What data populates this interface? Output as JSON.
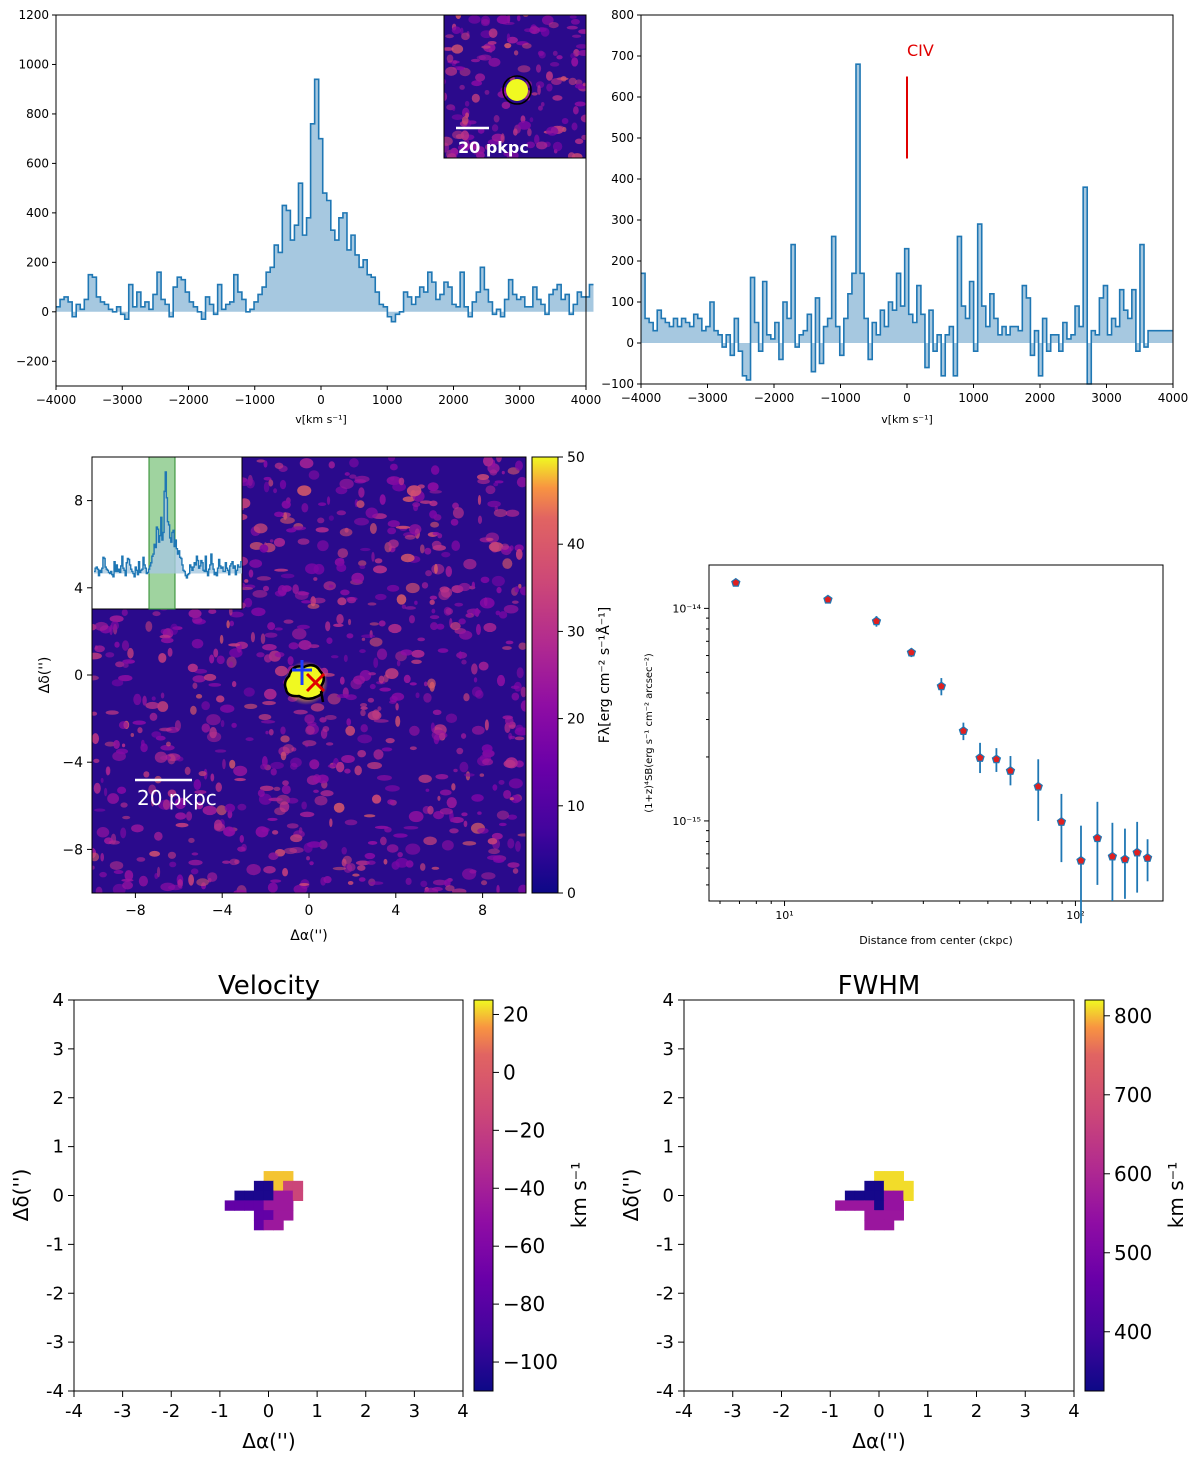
{
  "chart_data": [
    {
      "id": "spec_lya",
      "type": "line",
      "xlabel": "v[km s⁻¹]",
      "ylabel": "",
      "xlim": [
        -4000,
        4000
      ],
      "ylim": [
        -300,
        1200
      ],
      "xticks": [
        -4000,
        -3000,
        -2000,
        -1000,
        0,
        1000,
        2000,
        3000,
        4000
      ],
      "yticks": [
        -200,
        0,
        200,
        400,
        600,
        800,
        1000,
        1200
      ],
      "xticklabels": [
        "−4000",
        "−3000",
        "−2000",
        "−1000",
        "0",
        "1000",
        "2000",
        "3000",
        "4000"
      ],
      "yticklabels": [
        "−200",
        "0",
        "200",
        "400",
        "600",
        "800",
        "1000",
        "1200"
      ],
      "x_start": -4000,
      "step": 61,
      "values": [
        20,
        50,
        60,
        40,
        -20,
        30,
        10,
        50,
        150,
        140,
        60,
        40,
        30,
        10,
        0,
        20,
        -10,
        -30,
        110,
        20,
        80,
        20,
        40,
        10,
        70,
        160,
        50,
        30,
        -20,
        100,
        140,
        130,
        80,
        40,
        20,
        0,
        -30,
        60,
        30,
        -10,
        110,
        10,
        30,
        40,
        150,
        80,
        50,
        0,
        10,
        40,
        70,
        100,
        160,
        180,
        270,
        240,
        430,
        410,
        290,
        350,
        520,
        310,
        380,
        760,
        940,
        700,
        480,
        450,
        330,
        290,
        380,
        400,
        250,
        310,
        230,
        180,
        210,
        150,
        140,
        80,
        30,
        20,
        -20,
        -40,
        -10,
        0,
        80,
        60,
        30,
        60,
        100,
        80,
        160,
        120,
        50,
        70,
        120,
        100,
        30,
        20,
        160,
        20,
        -20,
        40,
        80,
        180,
        90,
        40,
        -10,
        10,
        -20,
        50,
        130,
        70,
        50,
        60,
        20,
        20,
        100,
        50,
        30,
        -10,
        70,
        90,
        110,
        50,
        70,
        -10,
        30,
        80,
        60,
        60,
        110
      ]
    },
    {
      "id": "spec_civ",
      "type": "line",
      "xlabel": "v[km s⁻¹]",
      "ylabel": "",
      "xlim": [
        -4000,
        4000
      ],
      "ylim": [
        -100,
        800
      ],
      "xticks": [
        -4000,
        -3000,
        -2000,
        -1000,
        0,
        1000,
        2000,
        3000,
        4000
      ],
      "yticks": [
        -100,
        0,
        100,
        200,
        300,
        400,
        500,
        600,
        700,
        800
      ],
      "xticklabels": [
        "−4000",
        "−3000",
        "−2000",
        "−1000",
        "0",
        "1000",
        "2000",
        "3000",
        "4000"
      ],
      "yticklabels": [
        "−100",
        "0",
        "100",
        "200",
        "300",
        "400",
        "500",
        "600",
        "700",
        "800"
      ],
      "x_start": -4000,
      "step": 61,
      "values": [
        170,
        60,
        50,
        30,
        80,
        60,
        50,
        40,
        60,
        40,
        60,
        50,
        40,
        70,
        60,
        30,
        40,
        100,
        30,
        20,
        -10,
        20,
        -30,
        60,
        -20,
        -80,
        -90,
        160,
        50,
        -20,
        150,
        20,
        10,
        50,
        -40,
        100,
        60,
        240,
        -10,
        20,
        30,
        70,
        -70,
        110,
        -50,
        40,
        60,
        260,
        40,
        -30,
        60,
        120,
        170,
        680,
        170,
        60,
        -40,
        50,
        20,
        80,
        40,
        100,
        80,
        170,
        90,
        230,
        70,
        50,
        140,
        70,
        -60,
        80,
        -20,
        20,
        -80,
        20,
        40,
        -80,
        260,
        90,
        60,
        150,
        -20,
        290,
        90,
        40,
        120,
        60,
        20,
        40,
        20,
        40,
        40,
        30,
        140,
        110,
        -30,
        30,
        -80,
        60,
        -20,
        20,
        20,
        -20,
        50,
        10,
        20,
        90,
        40,
        380,
        -100,
        30,
        20,
        110,
        140,
        20,
        60,
        40,
        130,
        80,
        60,
        130,
        -20,
        240,
        -10,
        30,
        30,
        30,
        30,
        30,
        30
      ],
      "annotation": "CIV",
      "annotation_line": {
        "x": 0,
        "y0": 450,
        "y1": 650
      }
    },
    {
      "id": "profile",
      "type": "scatter",
      "xscale": "log",
      "yscale": "log",
      "xlabel": "Distance from center (ckpc)",
      "ylabel": "(1+z)⁴SB(erg s⁻¹ cm⁻² arcsec⁻²)",
      "xlim": [
        5.5,
        200
      ],
      "ylim": [
        4.2e-16,
        1.6e-14
      ],
      "xtick_labels": [
        "10¹",
        "10²"
      ],
      "ytick_labels": [
        "10⁻¹⁵",
        "10⁻¹⁴"
      ],
      "x": [
        6.8,
        14.1,
        20.7,
        27.3,
        34.6,
        41.2,
        47.0,
        53.5,
        59.8,
        74.5,
        89.5,
        104.5,
        119.0,
        134.0,
        148.0,
        163.0,
        177.0
      ],
      "y": [
        1.32e-14,
        1.1e-14,
        8.7e-15,
        6.2e-15,
        4.3e-15,
        2.65e-15,
        1.98e-15,
        1.95e-15,
        1.72e-15,
        1.45e-15,
        9.9e-16,
        6.5e-16,
        8.3e-16,
        6.8e-16,
        6.6e-16,
        7.1e-16,
        6.7e-16
      ],
      "yerr_lo": [
        5e-16,
        4e-16,
        5e-16,
        3e-16,
        4e-16,
        2.5e-16,
        3e-16,
        2.5e-16,
        2.5e-16,
        4.5e-16,
        3.5e-16,
        3.2e-16,
        3.3e-16,
        2.6e-16,
        2.3e-16,
        2.5e-16,
        1.5e-16
      ],
      "yerr_hi": [
        5e-16,
        4e-16,
        5e-16,
        3e-16,
        4e-16,
        2.5e-16,
        3.5e-16,
        2.5e-16,
        3e-16,
        5e-16,
        3.5e-16,
        3e-16,
        4e-16,
        3e-16,
        2.6e-16,
        2.8e-16,
        1.5e-16
      ]
    },
    {
      "id": "nb_image",
      "type": "heatmap",
      "xlabel": "Δα('')",
      "ylabel": "Δδ('')",
      "xlim": [
        -10,
        10
      ],
      "ylim": [
        -10,
        10
      ],
      "xticks": [
        -8,
        -4,
        0,
        4,
        8
      ],
      "yticks": [
        -8,
        -4,
        0,
        4,
        8
      ],
      "colorbar_label": "Fλ[erg cm⁻² s⁻¹Å⁻¹]",
      "colorbar_range": [
        0,
        50
      ],
      "colorbar_ticks": [
        0,
        10,
        20,
        30,
        40,
        50
      ],
      "scalebar_label": "20 pkpc",
      "colormap": "plasma"
    },
    {
      "id": "velocity_map",
      "type": "heatmap",
      "title": "Velocity",
      "xlabel": "Δα('')",
      "ylabel": "Δδ('')",
      "xlim": [
        -4,
        4
      ],
      "ylim": [
        -4,
        4
      ],
      "xticks": [
        -4,
        -3,
        -2,
        -1,
        0,
        1,
        2,
        3,
        4
      ],
      "yticks": [
        -4,
        -3,
        -2,
        -1,
        0,
        1,
        2,
        3,
        4
      ],
      "colorbar_label": "km s⁻¹",
      "colorbar_range": [
        -110,
        25
      ],
      "colorbar_ticks": [
        20,
        0,
        -20,
        -40,
        -60,
        -80,
        -100
      ],
      "colorbar_ticklabels": [
        "20",
        "0",
        "−20",
        "−40",
        "−60",
        "−80",
        "−100"
      ],
      "cell_size": 0.2,
      "cells": [
        {
          "x": 0.0,
          "y": 0.4,
          "v": 20
        },
        {
          "x": 0.2,
          "y": 0.4,
          "v": 20
        },
        {
          "x": 0.4,
          "y": 0.4,
          "v": 20
        },
        {
          "x": -0.2,
          "y": 0.2,
          "v": -105
        },
        {
          "x": 0.0,
          "y": 0.2,
          "v": -105
        },
        {
          "x": 0.2,
          "y": 0.2,
          "v": 20
        },
        {
          "x": 0.4,
          "y": 0.2,
          "v": -15
        },
        {
          "x": 0.6,
          "y": 0.2,
          "v": -15
        },
        {
          "x": -0.6,
          "y": 0.0,
          "v": -105
        },
        {
          "x": -0.4,
          "y": 0.0,
          "v": -105
        },
        {
          "x": -0.2,
          "y": 0.0,
          "v": -105
        },
        {
          "x": 0.0,
          "y": 0.0,
          "v": -105
        },
        {
          "x": 0.2,
          "y": 0.0,
          "v": -45
        },
        {
          "x": 0.4,
          "y": 0.0,
          "v": -45
        },
        {
          "x": 0.6,
          "y": 0.0,
          "v": -15
        },
        {
          "x": -0.8,
          "y": -0.2,
          "v": -75
        },
        {
          "x": -0.6,
          "y": -0.2,
          "v": -75
        },
        {
          "x": -0.4,
          "y": -0.2,
          "v": -75
        },
        {
          "x": -0.2,
          "y": -0.2,
          "v": -75
        },
        {
          "x": 0.0,
          "y": -0.2,
          "v": -45
        },
        {
          "x": 0.2,
          "y": -0.2,
          "v": -45
        },
        {
          "x": 0.4,
          "y": -0.2,
          "v": -45
        },
        {
          "x": -0.2,
          "y": -0.4,
          "v": -75
        },
        {
          "x": 0.0,
          "y": -0.4,
          "v": -75
        },
        {
          "x": 0.2,
          "y": -0.4,
          "v": -45
        },
        {
          "x": 0.4,
          "y": -0.4,
          "v": -45
        },
        {
          "x": -0.2,
          "y": -0.6,
          "v": -75
        },
        {
          "x": 0.0,
          "y": -0.6,
          "v": -45
        },
        {
          "x": 0.2,
          "y": -0.6,
          "v": -45
        }
      ]
    },
    {
      "id": "fwhm_map",
      "type": "heatmap",
      "title": "FWHM",
      "xlabel": "Δα('')",
      "ylabel": "Δδ('')",
      "xlim": [
        -4,
        4
      ],
      "ylim": [
        -4,
        4
      ],
      "xticks": [
        -4,
        -3,
        -2,
        -1,
        0,
        1,
        2,
        3,
        4
      ],
      "yticks": [
        -4,
        -3,
        -2,
        -1,
        0,
        1,
        2,
        3,
        4
      ],
      "colorbar_label": "km s⁻¹",
      "colorbar_range": [
        325,
        820
      ],
      "colorbar_ticks": [
        800,
        700,
        600,
        500,
        400
      ],
      "colorbar_ticklabels": [
        "800",
        "700",
        "600",
        "500",
        "400"
      ],
      "cell_size": 0.2,
      "cells": [
        {
          "x": 0.0,
          "y": 0.4,
          "v": 810
        },
        {
          "x": 0.2,
          "y": 0.4,
          "v": 810
        },
        {
          "x": 0.4,
          "y": 0.4,
          "v": 810
        },
        {
          "x": -0.2,
          "y": 0.2,
          "v": 335
        },
        {
          "x": 0.0,
          "y": 0.2,
          "v": 335
        },
        {
          "x": 0.2,
          "y": 0.2,
          "v": 810
        },
        {
          "x": 0.4,
          "y": 0.2,
          "v": 810
        },
        {
          "x": 0.6,
          "y": 0.2,
          "v": 810
        },
        {
          "x": -0.6,
          "y": 0.0,
          "v": 335
        },
        {
          "x": -0.4,
          "y": 0.0,
          "v": 335
        },
        {
          "x": -0.2,
          "y": 0.0,
          "v": 335
        },
        {
          "x": 0.0,
          "y": 0.0,
          "v": 335
        },
        {
          "x": 0.2,
          "y": 0.0,
          "v": 550
        },
        {
          "x": 0.4,
          "y": 0.0,
          "v": 550
        },
        {
          "x": 0.6,
          "y": 0.0,
          "v": 810
        },
        {
          "x": -0.8,
          "y": -0.2,
          "v": 560
        },
        {
          "x": -0.6,
          "y": -0.2,
          "v": 560
        },
        {
          "x": -0.4,
          "y": -0.2,
          "v": 560
        },
        {
          "x": -0.2,
          "y": -0.2,
          "v": 560
        },
        {
          "x": 0.0,
          "y": -0.2,
          "v": 335
        },
        {
          "x": 0.2,
          "y": -0.2,
          "v": 550
        },
        {
          "x": 0.4,
          "y": -0.2,
          "v": 550
        },
        {
          "x": -0.2,
          "y": -0.4,
          "v": 560
        },
        {
          "x": 0.0,
          "y": -0.4,
          "v": 560
        },
        {
          "x": 0.2,
          "y": -0.4,
          "v": 560
        },
        {
          "x": 0.4,
          "y": -0.4,
          "v": 560
        },
        {
          "x": -0.2,
          "y": -0.6,
          "v": 560
        },
        {
          "x": 0.0,
          "y": -0.6,
          "v": 560
        },
        {
          "x": 0.2,
          "y": -0.6,
          "v": 560
        }
      ]
    }
  ]
}
